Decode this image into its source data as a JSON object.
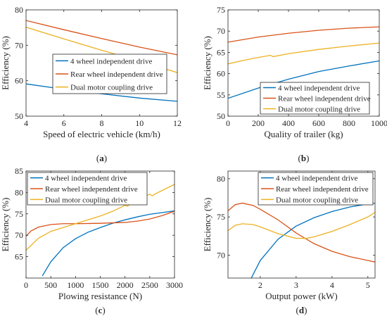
{
  "colors": {
    "series_1": "#0072BD",
    "series_2": "#D95319",
    "series_3": "#EDB120",
    "axis": "#262626",
    "legend_border": "#262626"
  },
  "chart_data": [
    {
      "type": "line",
      "panel_label": "(a)",
      "xlabel": "Speed of electric vehicle (km/h)",
      "ylabel": "Efficiency (%)",
      "xlim": [
        4,
        12
      ],
      "ylim": [
        50,
        80
      ],
      "xticks": [
        4,
        6,
        8,
        10,
        12
      ],
      "yticks": [
        50,
        60,
        70,
        80
      ],
      "legend_position": "center-right",
      "series": [
        {
          "name": "4 wheel independent drive",
          "color": "#0072BD",
          "x": [
            4,
            6,
            8,
            10,
            12
          ],
          "y": [
            59.1,
            57.6,
            56.3,
            55.1,
            54.2
          ]
        },
        {
          "name": "Rear wheel independent drive",
          "color": "#D95319",
          "x": [
            4,
            6,
            8,
            10,
            12
          ],
          "y": [
            77.0,
            74.4,
            71.9,
            69.5,
            67.3
          ]
        },
        {
          "name": "Dual motor coupling drive",
          "color": "#EDB120",
          "x": [
            4,
            6,
            8,
            10,
            12
          ],
          "y": [
            75.1,
            71.8,
            68.6,
            65.5,
            62.3
          ]
        }
      ]
    },
    {
      "type": "line",
      "panel_label": "(b)",
      "xlabel": "Quality of trailer (kg)",
      "ylabel": "Efficiency (%)",
      "xlim": [
        0,
        1000
      ],
      "ylim": [
        50,
        75
      ],
      "xticks": [
        0,
        200,
        400,
        600,
        800,
        1000
      ],
      "yticks": [
        50,
        55,
        60,
        65,
        70,
        75
      ],
      "legend_position": "bottom-right",
      "series": [
        {
          "name": "4 wheel independent drive",
          "color": "#0072BD",
          "x": [
            0,
            200,
            400,
            600,
            800,
            1000
          ],
          "y": [
            54.2,
            56.6,
            58.7,
            60.5,
            61.8,
            63.0
          ]
        },
        {
          "name": "Rear wheel independent drive",
          "color": "#D95319",
          "x": [
            0,
            200,
            400,
            600,
            800,
            1000
          ],
          "y": [
            67.4,
            68.6,
            69.5,
            70.2,
            70.7,
            71.0
          ]
        },
        {
          "name": "Dual motor coupling drive",
          "color": "#EDB120",
          "x": [
            0,
            100,
            200,
            280,
            300,
            400,
            600,
            800,
            1000
          ],
          "y": [
            62.3,
            63.1,
            63.8,
            64.3,
            64.0,
            64.7,
            65.7,
            66.5,
            67.2
          ]
        }
      ]
    },
    {
      "type": "line",
      "panel_label": "(c)",
      "xlabel": "Plowing resistance (N)",
      "ylabel": "Efficiency (%)",
      "xlim": [
        0,
        3000
      ],
      "ylim": [
        60,
        85
      ],
      "xticks": [
        0,
        500,
        1000,
        1500,
        2000,
        2500,
        3000
      ],
      "yticks": [
        65,
        70,
        75,
        80,
        85
      ],
      "legend_position": "top-left",
      "series": [
        {
          "name": "4 wheel independent drive",
          "color": "#0072BD",
          "x": [
            330,
            500,
            750,
            1000,
            1250,
            1500,
            1750,
            2000,
            2250,
            2500,
            2750,
            3000
          ],
          "y": [
            60.5,
            63.8,
            67.1,
            69.2,
            70.7,
            71.8,
            72.8,
            73.6,
            74.3,
            74.9,
            75.3,
            75.7
          ]
        },
        {
          "name": "Rear wheel independent drive",
          "color": "#D95319",
          "x": [
            0,
            100,
            250,
            500,
            750,
            1000,
            1500,
            2000,
            2250,
            2500,
            2750,
            3000
          ],
          "y": [
            69.8,
            71.0,
            71.9,
            72.5,
            72.7,
            72.7,
            72.8,
            73.0,
            73.3,
            73.8,
            74.6,
            75.6
          ]
        },
        {
          "name": "Dual motor coupling drive",
          "color": "#EDB120",
          "x": [
            0,
            250,
            500,
            1000,
            1500,
            1750,
            2000,
            2050,
            2150,
            2500,
            2550,
            2600,
            3000
          ],
          "y": [
            66.5,
            69.3,
            70.9,
            72.7,
            74.5,
            75.6,
            77.0,
            76.8,
            77.7,
            79.6,
            79.2,
            79.6,
            81.9
          ]
        }
      ]
    },
    {
      "type": "line",
      "panel_label": "(d)",
      "xlabel": "Output power (kW)",
      "ylabel": "Efficiency (%)",
      "xlim": [
        1.1,
        5.2
      ],
      "ylim": [
        67,
        81
      ],
      "xticks": [
        2,
        3,
        4,
        5
      ],
      "yticks": [
        70,
        75,
        80
      ],
      "legend_position": "top-right",
      "series": [
        {
          "name": "4 wheel independent drive",
          "color": "#0072BD",
          "x": [
            1.75,
            2.0,
            2.5,
            3.0,
            3.5,
            4.0,
            4.5,
            5.0,
            5.2
          ],
          "y": [
            67.0,
            69.3,
            72.1,
            73.8,
            74.9,
            75.7,
            76.3,
            76.7,
            76.8
          ]
        },
        {
          "name": "Rear wheel independent drive",
          "color": "#D95319",
          "x": [
            1.1,
            1.3,
            1.5,
            1.8,
            2.0,
            2.5,
            3.0,
            3.5,
            4.0,
            4.5,
            5.0,
            5.2
          ],
          "y": [
            75.8,
            76.6,
            76.8,
            76.5,
            76.0,
            74.6,
            72.9,
            71.5,
            70.5,
            69.8,
            69.3,
            69.1
          ]
        },
        {
          "name": "Dual motor coupling drive",
          "color": "#EDB120",
          "x": [
            1.1,
            1.3,
            1.5,
            1.8,
            2.0,
            2.5,
            3.0,
            3.3,
            3.5,
            4.0,
            4.5,
            5.0,
            5.2
          ],
          "y": [
            73.2,
            73.9,
            74.1,
            74.0,
            73.7,
            72.8,
            72.2,
            72.2,
            72.4,
            73.1,
            74.0,
            75.0,
            75.6
          ]
        }
      ]
    }
  ]
}
